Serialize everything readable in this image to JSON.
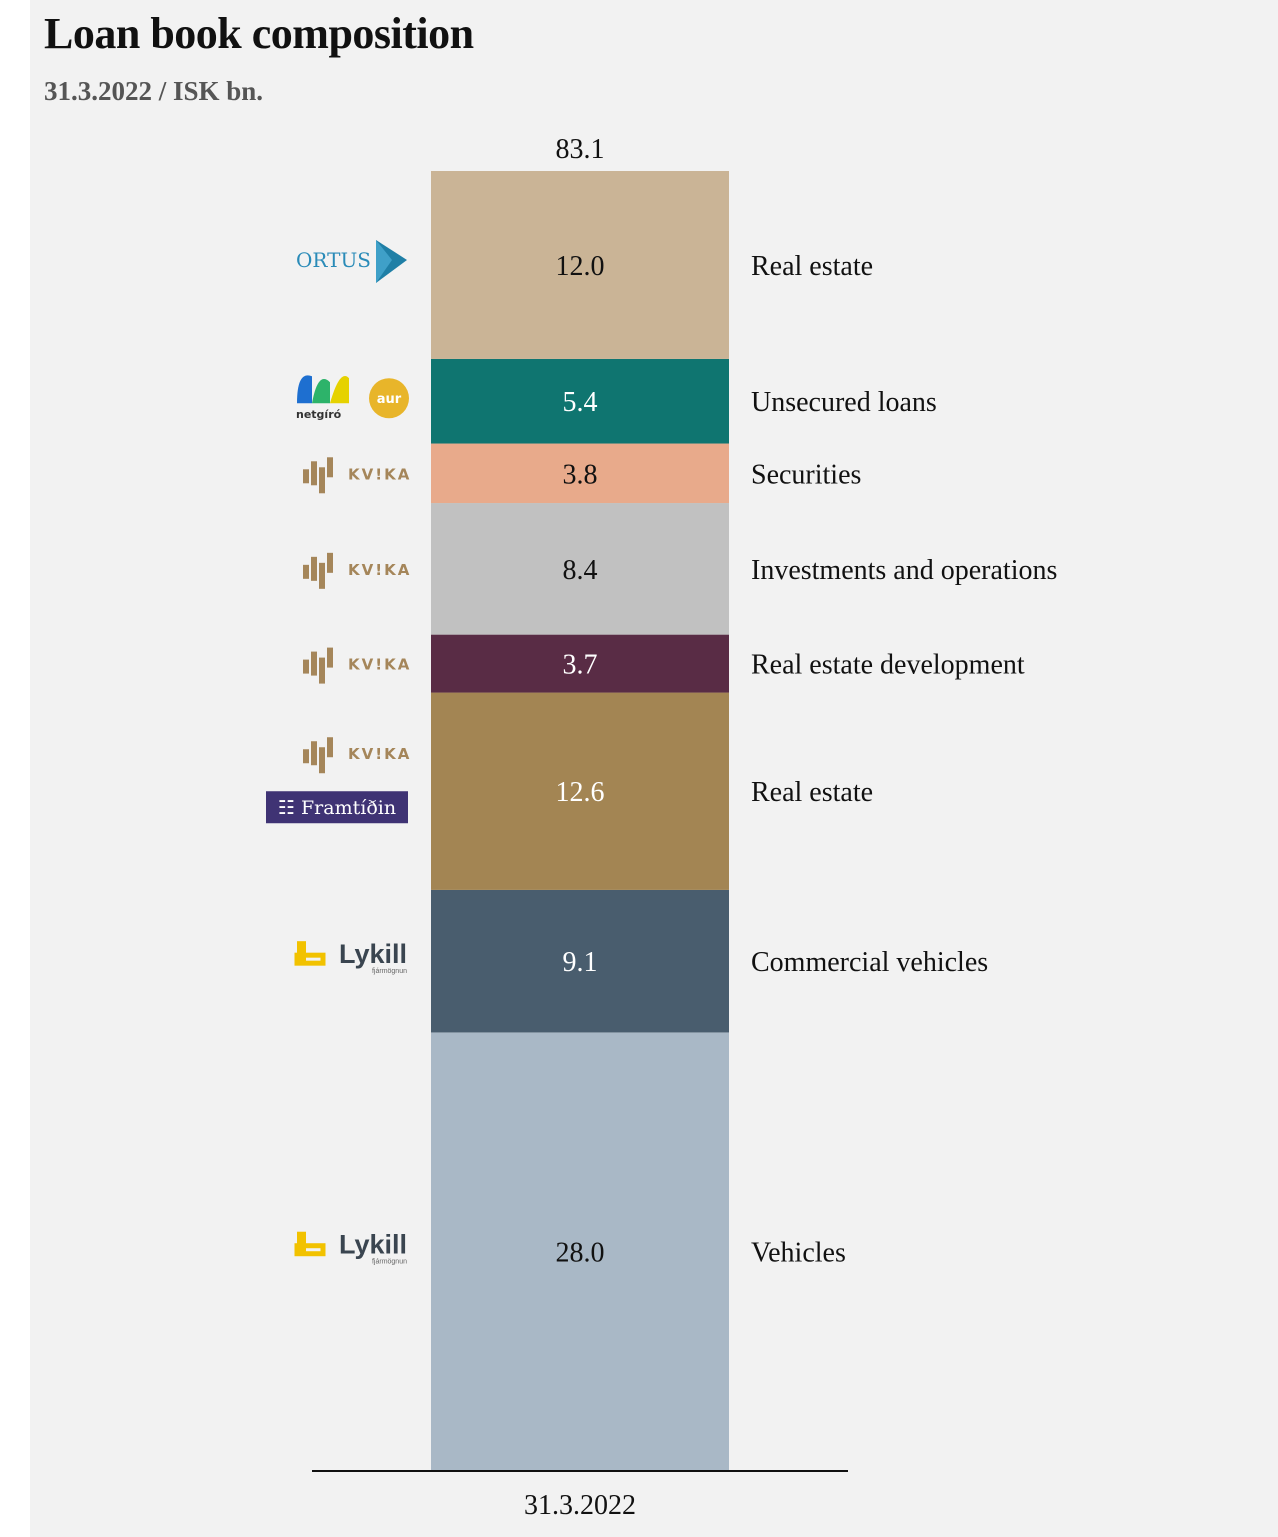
{
  "title": "Loan book composition",
  "subtitle": "31.3.2022 / ISK bn.",
  "logos": {
    "ortus": "ORTUS",
    "netgiro": "netgíró",
    "aur": "aur",
    "kvika": "KV!KA",
    "framtidin": "Framtíðin",
    "lykill": "Lykill",
    "lykill_sub": "fjármögnun"
  },
  "chart_data": {
    "type": "bar",
    "stacked": true,
    "categories": [
      "31.3.2022"
    ],
    "total": 83.1,
    "series": [
      {
        "name": "Vehicles",
        "values": [
          28.0
        ],
        "label": "28.0",
        "color": "#a9b8c6",
        "text_color": "#111111",
        "logos": [
          "lykill"
        ]
      },
      {
        "name": "Commercial vehicles",
        "values": [
          9.1
        ],
        "label": "9.1",
        "color": "#495d6e",
        "text_color": "#ffffff",
        "logos": [
          "lykill"
        ]
      },
      {
        "name": "Real estate",
        "values": [
          12.6
        ],
        "label": "12.6",
        "color": "#a38553",
        "text_color": "#ffffff",
        "logos": [
          "kvika",
          "framtidin"
        ]
      },
      {
        "name": "Real estate development",
        "values": [
          3.7
        ],
        "label": "3.7",
        "color": "#592c45",
        "text_color": "#ffffff",
        "logos": [
          "kvika"
        ]
      },
      {
        "name": "Investments and operations",
        "values": [
          8.4
        ],
        "label": "8.4",
        "color": "#c1c1c1",
        "text_color": "#111111",
        "logos": [
          "kvika"
        ]
      },
      {
        "name": "Securities",
        "values": [
          3.8
        ],
        "label": "3.8",
        "color": "#e8aa8b",
        "text_color": "#111111",
        "logos": [
          "kvika"
        ]
      },
      {
        "name": "Unsecured loans",
        "values": [
          5.4
        ],
        "label": "5.4",
        "color": "#0f7570",
        "text_color": "#ffffff",
        "logos": [
          "netgiro",
          "aur"
        ]
      },
      {
        "name": "Real estate",
        "values": [
          12.0
        ],
        "label": "12.0",
        "color": "#cab496",
        "text_color": "#111111",
        "logos": [
          "ortus"
        ]
      }
    ],
    "xlabel": "",
    "ylabel": "",
    "grid": false,
    "legend": "right"
  }
}
